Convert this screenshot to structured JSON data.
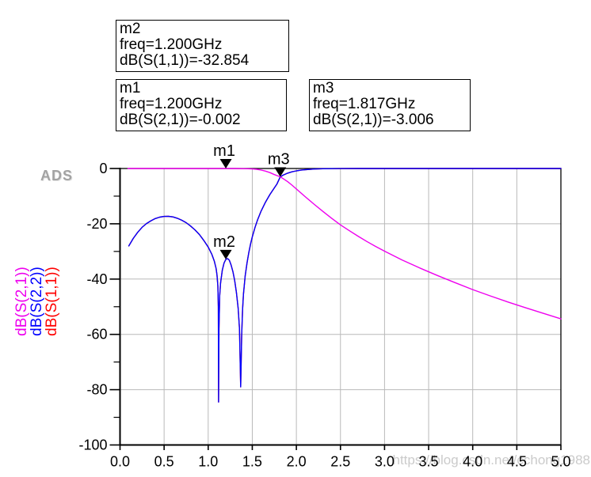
{
  "logo": "ADS",
  "watermark": "https://blog.csdn.net/cchong1988",
  "marker_boxes": [
    {
      "id": "m2",
      "lines": [
        "m2",
        "freq=1.200GHz",
        "dB(S(1,1))=-32.854"
      ]
    },
    {
      "id": "m1",
      "lines": [
        "m1",
        "freq=1.200GHz",
        "dB(S(2,1))=-0.002"
      ]
    },
    {
      "id": "m3",
      "lines": [
        "m3",
        "freq=1.817GHz",
        "dB(S(2,1))=-3.006"
      ]
    }
  ],
  "legend": [
    {
      "label": "dB(S(2,1))",
      "color": "#ee00ee"
    },
    {
      "label": "dB(S(2,2))",
      "color": "#0000ff"
    },
    {
      "label": "dB(S(1,1))",
      "color": "#ff0000"
    }
  ],
  "colors": {
    "grid": "#b9b9b9",
    "frame": "#000000",
    "marker": "#000000",
    "watermark_gray": "#cbcbcb",
    "logo_gray": "#a3a3a3"
  },
  "chart_data": {
    "type": "line",
    "title": "",
    "xlabel": "",
    "ylabel": "",
    "xlim": [
      0,
      5
    ],
    "ylim": [
      -100,
      0
    ],
    "grid": true,
    "xticks": [
      0.0,
      0.5,
      1.0,
      1.5,
      2.0,
      2.5,
      3.0,
      3.5,
      4.0,
      4.5,
      5.0
    ],
    "xtick_labels": [
      "0.0",
      "0.5",
      "1.0",
      "1.5",
      "2.0",
      "2.5",
      "3.0",
      "3.5",
      "4.0",
      "4.5",
      "5.0"
    ],
    "yticks": [
      0,
      -20,
      -40,
      -60,
      -80,
      -100
    ],
    "ytick_labels": [
      "0",
      "-20",
      "-40",
      "-60",
      "-80",
      "-100"
    ],
    "yticks_minor": [
      -10,
      -30,
      -50,
      -70,
      -90
    ],
    "series": [
      {
        "name": "dB(S(1,1))",
        "color": "#ff0000",
        "points": [
          [
            0.1,
            -28.0
          ],
          [
            0.15,
            -25.3
          ],
          [
            0.2,
            -23.1
          ],
          [
            0.25,
            -21.3
          ],
          [
            0.3,
            -19.9
          ],
          [
            0.35,
            -18.9
          ],
          [
            0.4,
            -18.1
          ],
          [
            0.45,
            -17.6
          ],
          [
            0.5,
            -17.35
          ],
          [
            0.55,
            -17.3
          ],
          [
            0.6,
            -17.5
          ],
          [
            0.65,
            -18.0
          ],
          [
            0.7,
            -18.7
          ],
          [
            0.75,
            -19.6
          ],
          [
            0.8,
            -20.8
          ],
          [
            0.85,
            -22.2
          ],
          [
            0.9,
            -23.9
          ],
          [
            0.95,
            -26.0
          ],
          [
            1.0,
            -28.4
          ],
          [
            1.04,
            -31.0
          ],
          [
            1.07,
            -33.6
          ],
          [
            1.09,
            -36.2
          ],
          [
            1.1,
            -38.5
          ],
          [
            1.11,
            -42.5
          ],
          [
            1.115,
            -50
          ],
          [
            1.118,
            -84.5
          ],
          [
            1.122,
            -58
          ],
          [
            1.13,
            -46
          ],
          [
            1.14,
            -41.5
          ],
          [
            1.16,
            -36.8
          ],
          [
            1.18,
            -34.2
          ],
          [
            1.2,
            -32.854
          ],
          [
            1.22,
            -32.6
          ],
          [
            1.24,
            -33.2
          ],
          [
            1.26,
            -34.9
          ],
          [
            1.28,
            -37.3
          ],
          [
            1.3,
            -40.5
          ],
          [
            1.32,
            -44.8
          ],
          [
            1.34,
            -50.5
          ],
          [
            1.355,
            -58
          ],
          [
            1.368,
            -79
          ],
          [
            1.38,
            -60
          ],
          [
            1.39,
            -51
          ],
          [
            1.4,
            -45.5
          ],
          [
            1.42,
            -38.8
          ],
          [
            1.44,
            -34.2
          ],
          [
            1.46,
            -30.5
          ],
          [
            1.48,
            -27.4
          ],
          [
            1.5,
            -24.8
          ],
          [
            1.53,
            -21.4
          ],
          [
            1.56,
            -18.6
          ],
          [
            1.6,
            -15.4
          ],
          [
            1.65,
            -12.2
          ],
          [
            1.7,
            -9.4
          ],
          [
            1.75,
            -7.0
          ],
          [
            1.78,
            -5.6
          ],
          [
            1.817,
            -3.05
          ],
          [
            1.85,
            -2.4
          ],
          [
            1.9,
            -1.7
          ],
          [
            1.95,
            -1.2
          ],
          [
            2.0,
            -0.85
          ],
          [
            2.05,
            -0.6
          ],
          [
            2.1,
            -0.42
          ],
          [
            2.2,
            -0.2
          ],
          [
            2.3,
            -0.1
          ],
          [
            2.4,
            -0.05
          ],
          [
            2.5,
            -0.03
          ],
          [
            2.7,
            -0.01
          ],
          [
            3.0,
            -0.005
          ],
          [
            4.0,
            -0.002
          ],
          [
            5.0,
            -0.001
          ]
        ]
      },
      {
        "name": "dB(S(2,2))",
        "color": "#0000ff",
        "points": [
          [
            0.1,
            -28.0
          ],
          [
            0.15,
            -25.3
          ],
          [
            0.2,
            -23.1
          ],
          [
            0.25,
            -21.3
          ],
          [
            0.3,
            -19.9
          ],
          [
            0.35,
            -18.9
          ],
          [
            0.4,
            -18.1
          ],
          [
            0.45,
            -17.6
          ],
          [
            0.5,
            -17.35
          ],
          [
            0.55,
            -17.3
          ],
          [
            0.6,
            -17.5
          ],
          [
            0.65,
            -18.0
          ],
          [
            0.7,
            -18.7
          ],
          [
            0.75,
            -19.6
          ],
          [
            0.8,
            -20.8
          ],
          [
            0.85,
            -22.2
          ],
          [
            0.9,
            -23.9
          ],
          [
            0.95,
            -26.0
          ],
          [
            1.0,
            -28.4
          ],
          [
            1.04,
            -31.0
          ],
          [
            1.07,
            -33.6
          ],
          [
            1.09,
            -36.2
          ],
          [
            1.1,
            -38.5
          ],
          [
            1.11,
            -42.5
          ],
          [
            1.115,
            -50
          ],
          [
            1.118,
            -84.5
          ],
          [
            1.122,
            -58
          ],
          [
            1.13,
            -46
          ],
          [
            1.14,
            -41.5
          ],
          [
            1.16,
            -36.8
          ],
          [
            1.18,
            -34.2
          ],
          [
            1.2,
            -32.854
          ],
          [
            1.22,
            -32.6
          ],
          [
            1.24,
            -33.2
          ],
          [
            1.26,
            -34.9
          ],
          [
            1.28,
            -37.3
          ],
          [
            1.3,
            -40.5
          ],
          [
            1.32,
            -44.8
          ],
          [
            1.34,
            -50.5
          ],
          [
            1.355,
            -58
          ],
          [
            1.368,
            -79
          ],
          [
            1.38,
            -60
          ],
          [
            1.39,
            -51
          ],
          [
            1.4,
            -45.5
          ],
          [
            1.42,
            -38.8
          ],
          [
            1.44,
            -34.2
          ],
          [
            1.46,
            -30.5
          ],
          [
            1.48,
            -27.4
          ],
          [
            1.5,
            -24.8
          ],
          [
            1.53,
            -21.4
          ],
          [
            1.56,
            -18.6
          ],
          [
            1.6,
            -15.4
          ],
          [
            1.65,
            -12.2
          ],
          [
            1.7,
            -9.4
          ],
          [
            1.75,
            -7.0
          ],
          [
            1.78,
            -5.6
          ],
          [
            1.817,
            -3.05
          ],
          [
            1.85,
            -2.4
          ],
          [
            1.9,
            -1.7
          ],
          [
            1.95,
            -1.2
          ],
          [
            2.0,
            -0.85
          ],
          [
            2.05,
            -0.6
          ],
          [
            2.1,
            -0.42
          ],
          [
            2.2,
            -0.2
          ],
          [
            2.3,
            -0.1
          ],
          [
            2.4,
            -0.05
          ],
          [
            2.5,
            -0.03
          ],
          [
            2.7,
            -0.01
          ],
          [
            3.0,
            -0.005
          ],
          [
            4.0,
            -0.002
          ],
          [
            5.0,
            -0.001
          ]
        ]
      },
      {
        "name": "dB(S(2,1))",
        "color": "#ee00ee",
        "points": [
          [
            0.09,
            -0.001
          ],
          [
            0.5,
            -0.001
          ],
          [
            1.0,
            -0.001
          ],
          [
            1.2,
            -0.002
          ],
          [
            1.3,
            -0.01
          ],
          [
            1.4,
            -0.05
          ],
          [
            1.45,
            -0.09
          ],
          [
            1.5,
            -0.16
          ],
          [
            1.55,
            -0.3
          ],
          [
            1.6,
            -0.55
          ],
          [
            1.65,
            -0.95
          ],
          [
            1.7,
            -1.5
          ],
          [
            1.75,
            -2.2
          ],
          [
            1.817,
            -3.006
          ],
          [
            1.85,
            -3.65
          ],
          [
            1.9,
            -4.75
          ],
          [
            1.95,
            -6.0
          ],
          [
            2.0,
            -7.4
          ],
          [
            2.1,
            -10.2
          ],
          [
            2.2,
            -12.9
          ],
          [
            2.3,
            -15.5
          ],
          [
            2.4,
            -18.0
          ],
          [
            2.5,
            -20.4
          ],
          [
            2.6,
            -22.5
          ],
          [
            2.7,
            -24.5
          ],
          [
            2.8,
            -26.4
          ],
          [
            2.9,
            -28.2
          ],
          [
            3.0,
            -29.9
          ],
          [
            3.2,
            -33.1
          ],
          [
            3.4,
            -36.0
          ],
          [
            3.6,
            -38.7
          ],
          [
            3.8,
            -41.3
          ],
          [
            4.0,
            -43.8
          ],
          [
            4.2,
            -46.1
          ],
          [
            4.4,
            -48.3
          ],
          [
            4.6,
            -50.4
          ],
          [
            4.8,
            -52.4
          ],
          [
            5.0,
            -54.4
          ]
        ]
      }
    ],
    "markers": [
      {
        "label": "m1",
        "freq": 1.2,
        "db": 0
      },
      {
        "label": "m2",
        "freq": 1.2,
        "db": -32.854
      },
      {
        "label": "m3",
        "freq": 1.817,
        "db": -3.006
      }
    ]
  }
}
